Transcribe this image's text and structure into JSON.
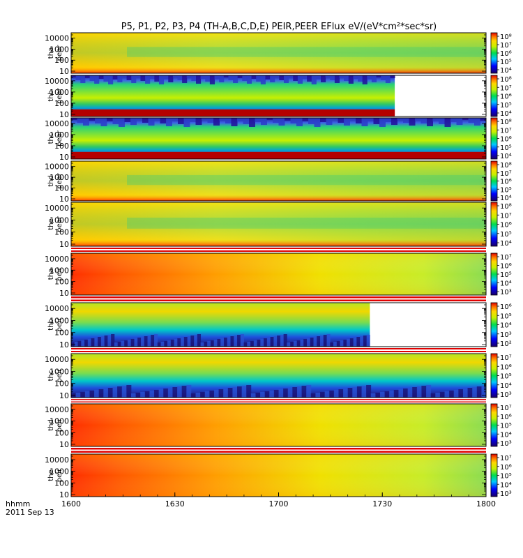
{
  "chart_data": {
    "type": "heatmap",
    "title": "P5, P1, P2, P3, P4 (TH-A,B,C,D,E) PEIR,PEER EFlux eV/(eV*cm²*sec*sr)",
    "x_axis": {
      "ticks": [
        "1600",
        "1630",
        "1700",
        "1730",
        "1800"
      ],
      "label_line1": "hhmm",
      "label_line2": "2011 Sep 13"
    },
    "panels": [
      {
        "id": "tha-peer",
        "ylabel_line1": "tha",
        "ylabel_line2": "peer",
        "yticks": [
          "10",
          "100",
          "1000",
          "10000"
        ],
        "cbar_ticks": [
          "10⁸",
          "10⁷",
          "10⁶",
          "10⁵",
          "10⁴"
        ],
        "pattern": "peer",
        "data_end": 1.0
      },
      {
        "id": "thb-peer",
        "ylabel_line1": "thb",
        "ylabel_line2": "peer",
        "yticks": [
          "10",
          "100",
          "1000",
          "10000"
        ],
        "cbar_ticks": [
          "10⁸",
          "10⁷",
          "10⁶",
          "10⁵",
          "10⁴"
        ],
        "pattern": "peer_noisy",
        "data_end": 0.78
      },
      {
        "id": "thc-peer",
        "ylabel_line1": "thc",
        "ylabel_line2": "peer",
        "yticks": [
          "10",
          "100",
          "1000",
          "10000"
        ],
        "cbar_ticks": [
          "10⁸",
          "10⁷",
          "10⁶",
          "10⁵",
          "10⁴"
        ],
        "pattern": "peer_noisy",
        "data_end": 1.0
      },
      {
        "id": "thd-peer",
        "ylabel_line1": "thd",
        "ylabel_line2": "peer",
        "yticks": [
          "10",
          "100",
          "1000",
          "10000"
        ],
        "cbar_ticks": [
          "10⁸",
          "10⁷",
          "10⁶",
          "10⁵",
          "10⁴"
        ],
        "pattern": "peer",
        "data_end": 1.0
      },
      {
        "id": "the-peer",
        "ylabel_line1": "the",
        "ylabel_line2": "peer",
        "yticks": [
          "10",
          "100",
          "1000",
          "10000"
        ],
        "cbar_ticks": [
          "10⁸",
          "10⁷",
          "10⁶",
          "10⁵",
          "10⁴"
        ],
        "pattern": "peer",
        "data_end": 1.0
      },
      {
        "id": "tha-peir",
        "ylabel_line1": "tha",
        "ylabel_line2": "peir",
        "yticks": [
          "10",
          "100",
          "1000",
          "10000"
        ],
        "cbar_ticks": [
          "10⁷",
          "10⁶",
          "10⁵",
          "10⁴",
          "10³"
        ],
        "pattern": "peir",
        "data_end": 1.0
      },
      {
        "id": "thb-peir",
        "ylabel_line1": "thb",
        "ylabel_line2": "peir",
        "yticks": [
          "10",
          "100",
          "1000",
          "10000"
        ],
        "cbar_ticks": [
          "10⁶",
          "10⁵",
          "10⁴",
          "10³",
          "10²"
        ],
        "pattern": "peir_noisy",
        "data_end": 0.72
      },
      {
        "id": "thc-peir",
        "ylabel_line1": "thc",
        "ylabel_line2": "peir",
        "yticks": [
          "10",
          "100",
          "1000",
          "10000"
        ],
        "cbar_ticks": [
          "10⁷",
          "10⁶",
          "10⁵",
          "10⁴",
          "10³"
        ],
        "pattern": "peir_noisy",
        "data_end": 1.0
      },
      {
        "id": "thd-peir",
        "ylabel_line1": "thd",
        "ylabel_line2": "peir",
        "yticks": [
          "10",
          "100",
          "1000",
          "10000"
        ],
        "cbar_ticks": [
          "10⁷",
          "10⁶",
          "10⁵",
          "10⁴",
          "10³"
        ],
        "pattern": "peir",
        "data_end": 1.0
      },
      {
        "id": "the-peir",
        "ylabel_line1": "the",
        "ylabel_line2": "peir",
        "yticks": [
          "10",
          "100",
          "1000",
          "10000"
        ],
        "cbar_ticks": [
          "10⁷",
          "10⁶",
          "10⁵",
          "10⁴",
          "10³"
        ],
        "pattern": "peir",
        "data_end": 1.0
      }
    ]
  }
}
